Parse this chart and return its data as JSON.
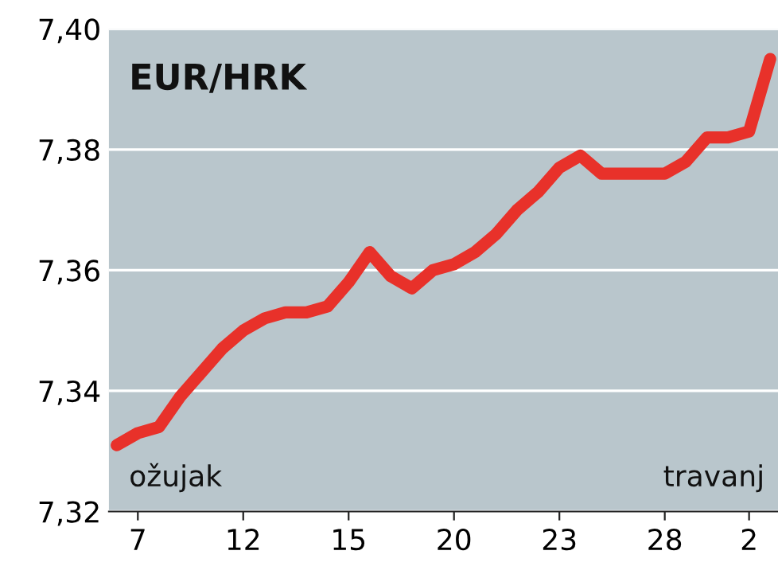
{
  "chart_data": {
    "type": "line",
    "title": "EUR/HRK",
    "categories": [
      null,
      "7",
      null,
      null,
      null,
      null,
      "12",
      null,
      null,
      null,
      null,
      "15",
      null,
      null,
      null,
      null,
      "20",
      null,
      null,
      null,
      null,
      "23",
      null,
      null,
      null,
      null,
      "28",
      null,
      null,
      null,
      "2",
      null
    ],
    "series": [
      {
        "color": "#e8312a",
        "values": [
          7.331,
          7.333,
          7.334,
          7.339,
          7.343,
          7.347,
          7.35,
          7.352,
          7.353,
          7.353,
          7.354,
          7.358,
          7.363,
          7.359,
          7.357,
          7.36,
          7.361,
          7.363,
          7.366,
          7.37,
          7.373,
          7.377,
          7.379,
          7.376,
          7.376,
          7.376,
          7.376,
          7.378,
          7.382,
          7.382,
          7.383,
          7.395
        ]
      }
    ],
    "ylim": [
      7.32,
      7.4
    ],
    "yticks": [
      {
        "value": 7.32,
        "label": "7,32"
      },
      {
        "value": 7.34,
        "label": "7,34"
      },
      {
        "value": 7.36,
        "label": "7,36"
      },
      {
        "value": 7.38,
        "label": "7,38"
      },
      {
        "value": 7.4,
        "label": "7,40"
      }
    ],
    "grid": "y",
    "marker": "none",
    "line_style": "solid",
    "annotations": [
      "ožujak",
      "travanj"
    ]
  }
}
